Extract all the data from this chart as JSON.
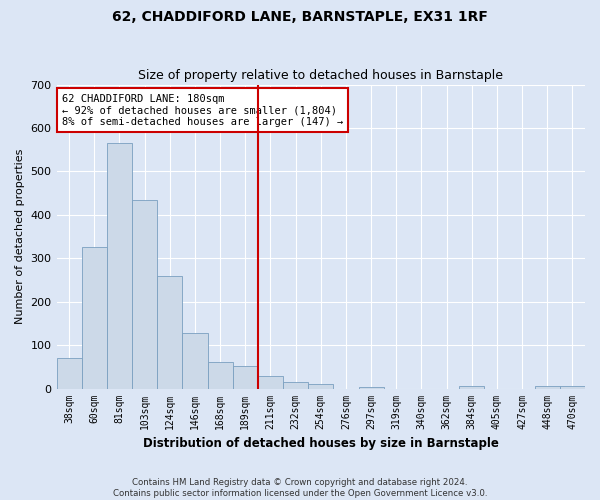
{
  "title": "62, CHADDIFORD LANE, BARNSTAPLE, EX31 1RF",
  "subtitle": "Size of property relative to detached houses in Barnstaple",
  "xlabel": "Distribution of detached houses by size in Barnstaple",
  "ylabel": "Number of detached properties",
  "bar_color": "#ccd9e8",
  "bar_edge_color": "#7a9fc0",
  "background_color": "#dce6f5",
  "fig_background_color": "#dce6f5",
  "categories": [
    "38sqm",
    "60sqm",
    "81sqm",
    "103sqm",
    "124sqm",
    "146sqm",
    "168sqm",
    "189sqm",
    "211sqm",
    "232sqm",
    "254sqm",
    "276sqm",
    "297sqm",
    "319sqm",
    "340sqm",
    "362sqm",
    "384sqm",
    "405sqm",
    "427sqm",
    "448sqm",
    "470sqm"
  ],
  "values": [
    70,
    325,
    565,
    435,
    260,
    128,
    62,
    53,
    28,
    16,
    10,
    0,
    3,
    0,
    0,
    0,
    5,
    0,
    0,
    6,
    5
  ],
  "ylim": [
    0,
    700
  ],
  "yticks": [
    0,
    100,
    200,
    300,
    400,
    500,
    600,
    700
  ],
  "property_line_x": 7.5,
  "annotation_text_line1": "62 CHADDIFORD LANE: 180sqm",
  "annotation_text_line2": "← 92% of detached houses are smaller (1,804)",
  "annotation_text_line3": "8% of semi-detached houses are larger (147) →",
  "annotation_box_color": "#ffffff",
  "annotation_border_color": "#cc0000",
  "vline_color": "#cc0000",
  "title_fontsize": 10,
  "subtitle_fontsize": 9,
  "footer_line1": "Contains HM Land Registry data © Crown copyright and database right 2024.",
  "footer_line2": "Contains public sector information licensed under the Open Government Licence v3.0."
}
